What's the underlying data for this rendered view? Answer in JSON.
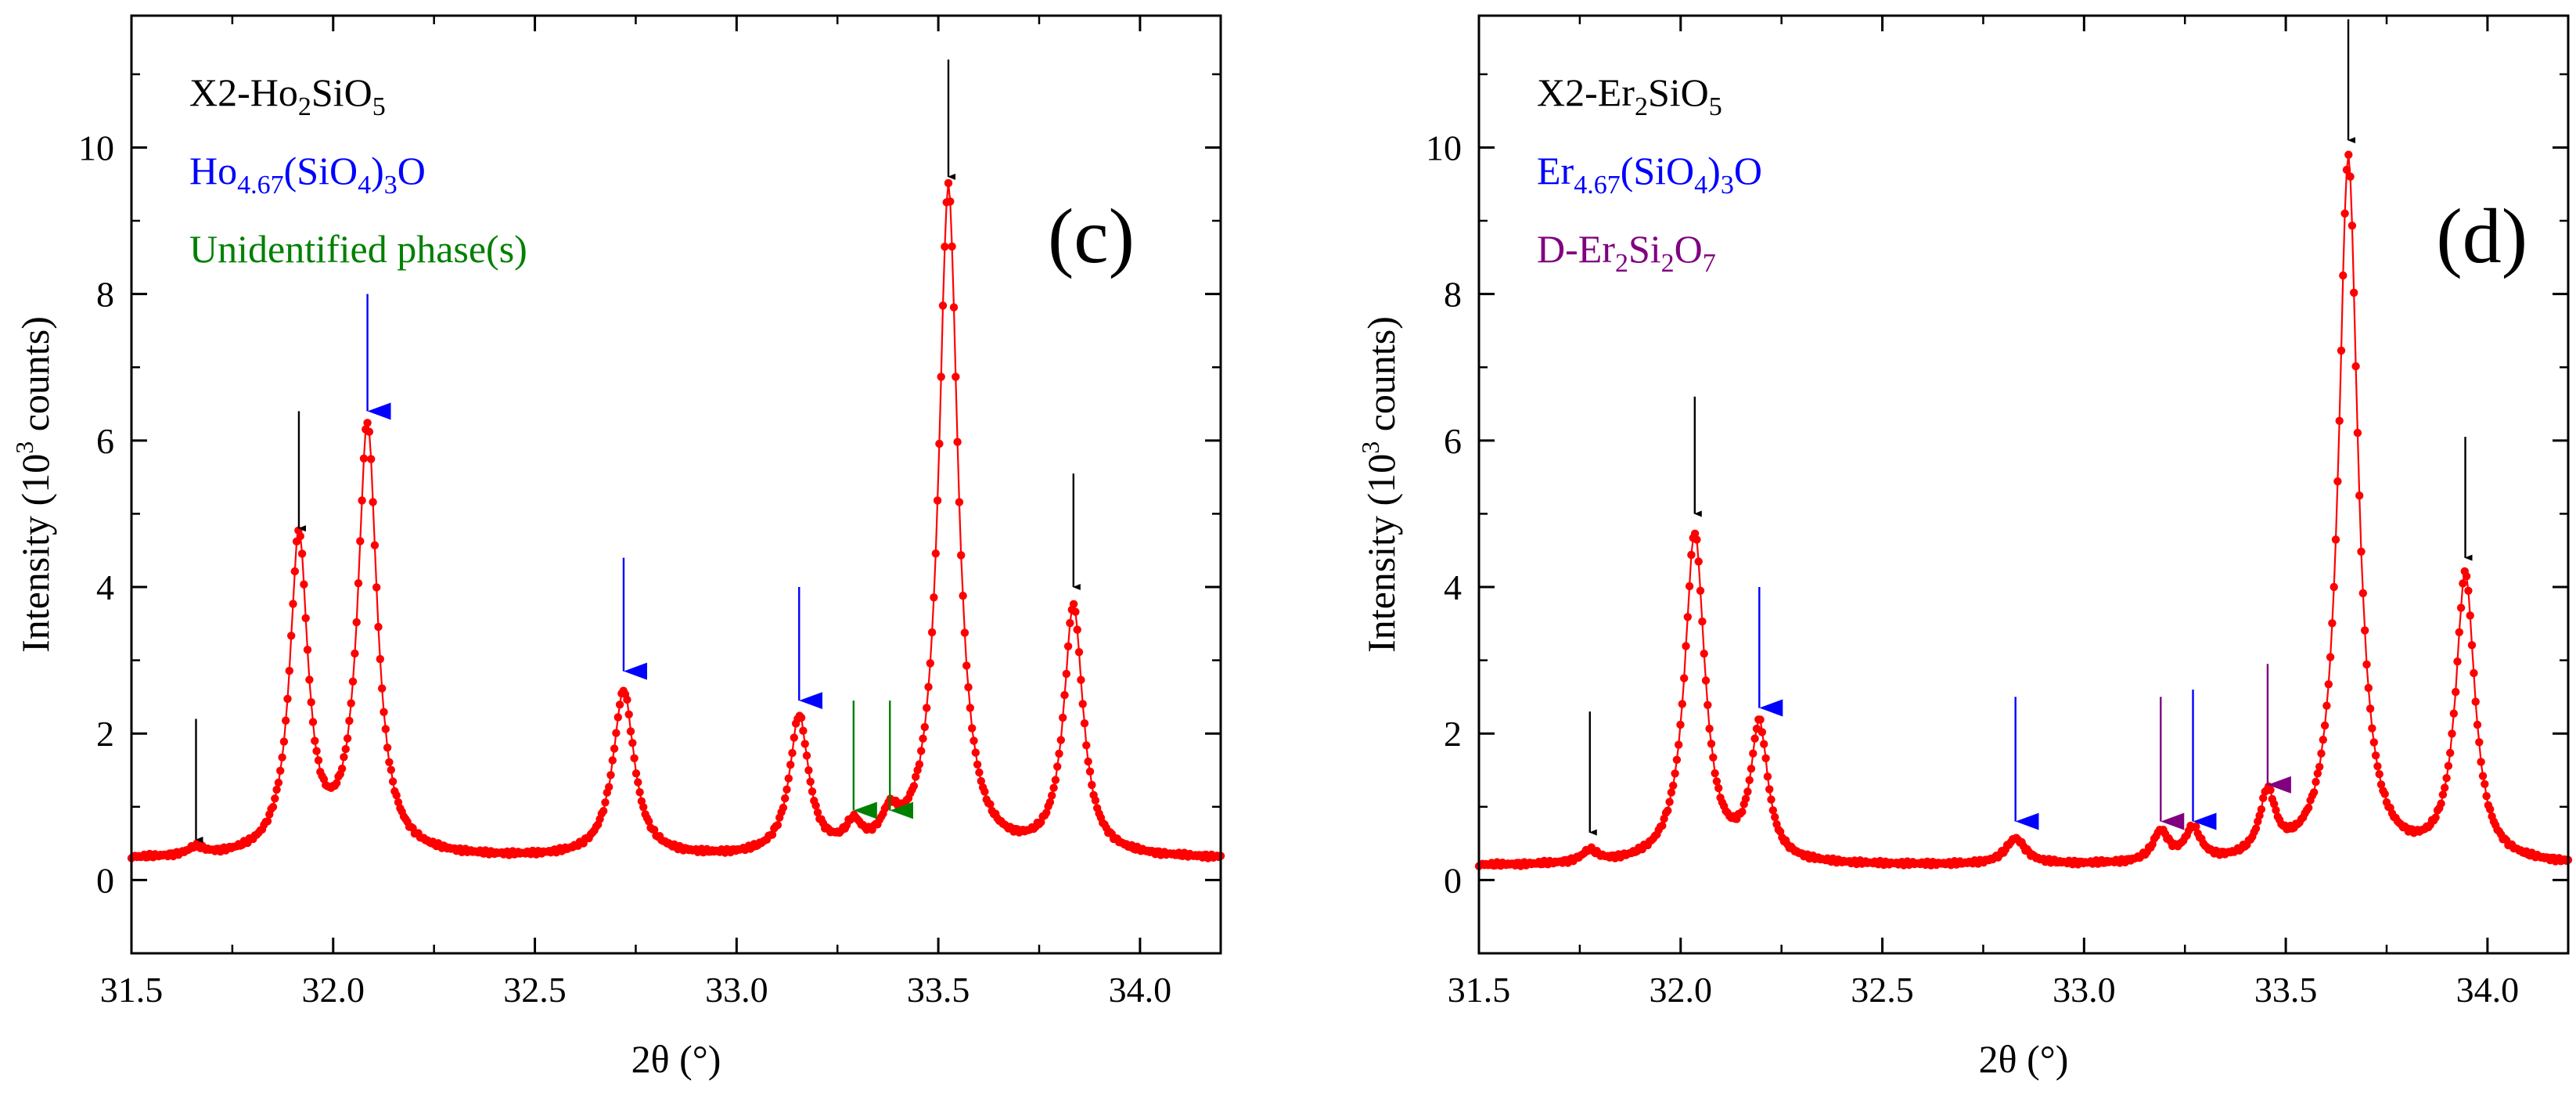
{
  "chart_data": [
    {
      "type": "line",
      "panel_label": "(c)",
      "xlabel": "2θ (°)",
      "ylabel_main": "Intensity (10",
      "ylabel_sup": "3",
      "ylabel_tail": " counts)",
      "xlim": [
        31.5,
        34.2
      ],
      "ylim": [
        -1,
        11.8
      ],
      "x_ticks": [
        31.5,
        32.0,
        32.5,
        33.0,
        33.5,
        34.0
      ],
      "x_tick_labels": [
        "31.5",
        "32.0",
        "32.5",
        "33.0",
        "33.5",
        "34.0"
      ],
      "y_ticks": [
        0,
        2,
        4,
        6,
        8,
        10
      ],
      "y_tick_labels": [
        "0",
        "2",
        "4",
        "6",
        "8",
        "10"
      ],
      "series_color": "#ff0000",
      "background": 0.28,
      "peaks": [
        {
          "x": 31.66,
          "h": 0.11,
          "w": 0.03
        },
        {
          "x": 31.915,
          "h": 4.33,
          "w": 0.034
        },
        {
          "x": 32.085,
          "h": 5.87,
          "w": 0.036
        },
        {
          "x": 32.72,
          "h": 2.27,
          "w": 0.04
        },
        {
          "x": 33.155,
          "h": 1.88,
          "w": 0.036
        },
        {
          "x": 33.29,
          "h": 0.33,
          "w": 0.03
        },
        {
          "x": 33.38,
          "h": 0.39,
          "w": 0.032
        },
        {
          "x": 33.525,
          "h": 9.15,
          "w": 0.036
        },
        {
          "x": 33.835,
          "h": 3.4,
          "w": 0.036
        }
      ],
      "legend": [
        {
          "parts": [
            {
              "t": "X2-Ho"
            },
            {
              "t": "2",
              "sub": true
            },
            {
              "t": "SiO"
            },
            {
              "t": "5",
              "sub": true
            }
          ],
          "color": "#000000"
        },
        {
          "parts": [
            {
              "t": "Ho"
            },
            {
              "t": "4.67",
              "sub": true
            },
            {
              "t": "(SiO"
            },
            {
              "t": "4",
              "sub": true
            },
            {
              "t": ")"
            },
            {
              "t": "3",
              "sub": true
            },
            {
              "t": "O"
            }
          ],
          "color": "#0000ff"
        },
        {
          "parts": [
            {
              "t": "Unidentified phase(s)"
            }
          ],
          "color": "#008000"
        }
      ],
      "markers": [
        {
          "x": 31.66,
          "tip": 0.55,
          "top": 2.2,
          "color": "#000000"
        },
        {
          "x": 31.915,
          "tip": 4.8,
          "top": 6.4,
          "color": "#000000"
        },
        {
          "x": 32.085,
          "tip": 6.4,
          "top": 8.0,
          "color": "#0000ff"
        },
        {
          "x": 32.72,
          "tip": 2.85,
          "top": 4.4,
          "color": "#0000ff"
        },
        {
          "x": 33.155,
          "tip": 2.45,
          "top": 4.0,
          "color": "#0000ff"
        },
        {
          "x": 33.29,
          "tip": 0.95,
          "top": 2.45,
          "color": "#008000"
        },
        {
          "x": 33.38,
          "tip": 0.95,
          "top": 2.45,
          "color": "#008000"
        },
        {
          "x": 33.525,
          "tip": 9.6,
          "top": 11.2,
          "color": "#000000"
        },
        {
          "x": 33.835,
          "tip": 4.0,
          "top": 5.55,
          "color": "#000000"
        }
      ]
    },
    {
      "type": "line",
      "panel_label": "(d)",
      "xlabel": "2θ (°)",
      "ylabel_main": "Intensity (10",
      "ylabel_sup": "3",
      "ylabel_tail": " counts)",
      "xlim": [
        31.5,
        34.2
      ],
      "ylim": [
        -1,
        11.8
      ],
      "x_ticks": [
        31.5,
        32.0,
        32.5,
        33.0,
        33.5,
        34.0
      ],
      "x_tick_labels": [
        "31.5",
        "32.0",
        "32.5",
        "33.0",
        "33.5",
        "34.0"
      ],
      "y_ticks": [
        0,
        2,
        4,
        6,
        8,
        10
      ],
      "y_tick_labels": [
        "0",
        "2",
        "4",
        "6",
        "8",
        "10"
      ],
      "series_color": "#ff0000",
      "background": 0.19,
      "peaks": [
        {
          "x": 31.775,
          "h": 0.16,
          "w": 0.03
        },
        {
          "x": 32.035,
          "h": 4.51,
          "w": 0.038
        },
        {
          "x": 32.195,
          "h": 1.84,
          "w": 0.032
        },
        {
          "x": 32.83,
          "h": 0.35,
          "w": 0.038
        },
        {
          "x": 33.19,
          "h": 0.41,
          "w": 0.03
        },
        {
          "x": 33.27,
          "h": 0.44,
          "w": 0.03
        },
        {
          "x": 33.455,
          "h": 0.86,
          "w": 0.03
        },
        {
          "x": 33.655,
          "h": 9.65,
          "w": 0.036
        },
        {
          "x": 33.945,
          "h": 3.92,
          "w": 0.036
        }
      ],
      "legend": [
        {
          "parts": [
            {
              "t": "X2-Er"
            },
            {
              "t": "2",
              "sub": true
            },
            {
              "t": "SiO"
            },
            {
              "t": "5",
              "sub": true
            }
          ],
          "color": "#000000"
        },
        {
          "parts": [
            {
              "t": "Er"
            },
            {
              "t": "4.67",
              "sub": true
            },
            {
              "t": "(SiO"
            },
            {
              "t": "4",
              "sub": true
            },
            {
              "t": ")"
            },
            {
              "t": "3",
              "sub": true
            },
            {
              "t": "O"
            }
          ],
          "color": "#0000ff"
        },
        {
          "parts": [
            {
              "t": "D-Er"
            },
            {
              "t": "2",
              "sub": true
            },
            {
              "t": "Si"
            },
            {
              "t": "2",
              "sub": true
            },
            {
              "t": "O"
            },
            {
              "t": "7",
              "sub": true
            }
          ],
          "color": "#800080"
        }
      ],
      "markers": [
        {
          "x": 31.775,
          "tip": 0.65,
          "top": 2.3,
          "color": "#000000"
        },
        {
          "x": 32.035,
          "tip": 5.0,
          "top": 6.6,
          "color": "#000000"
        },
        {
          "x": 32.195,
          "tip": 2.35,
          "top": 4.0,
          "color": "#0000ff"
        },
        {
          "x": 32.83,
          "tip": 0.8,
          "top": 2.5,
          "color": "#0000ff"
        },
        {
          "x": 33.19,
          "tip": 0.8,
          "top": 2.5,
          "color": "#800080"
        },
        {
          "x": 33.27,
          "tip": 0.8,
          "top": 2.6,
          "color": "#0000ff"
        },
        {
          "x": 33.455,
          "tip": 1.3,
          "top": 2.95,
          "color": "#800080"
        },
        {
          "x": 33.655,
          "tip": 10.1,
          "top": 11.75,
          "color": "#000000"
        },
        {
          "x": 33.945,
          "tip": 4.4,
          "top": 6.05,
          "color": "#000000"
        }
      ]
    }
  ]
}
